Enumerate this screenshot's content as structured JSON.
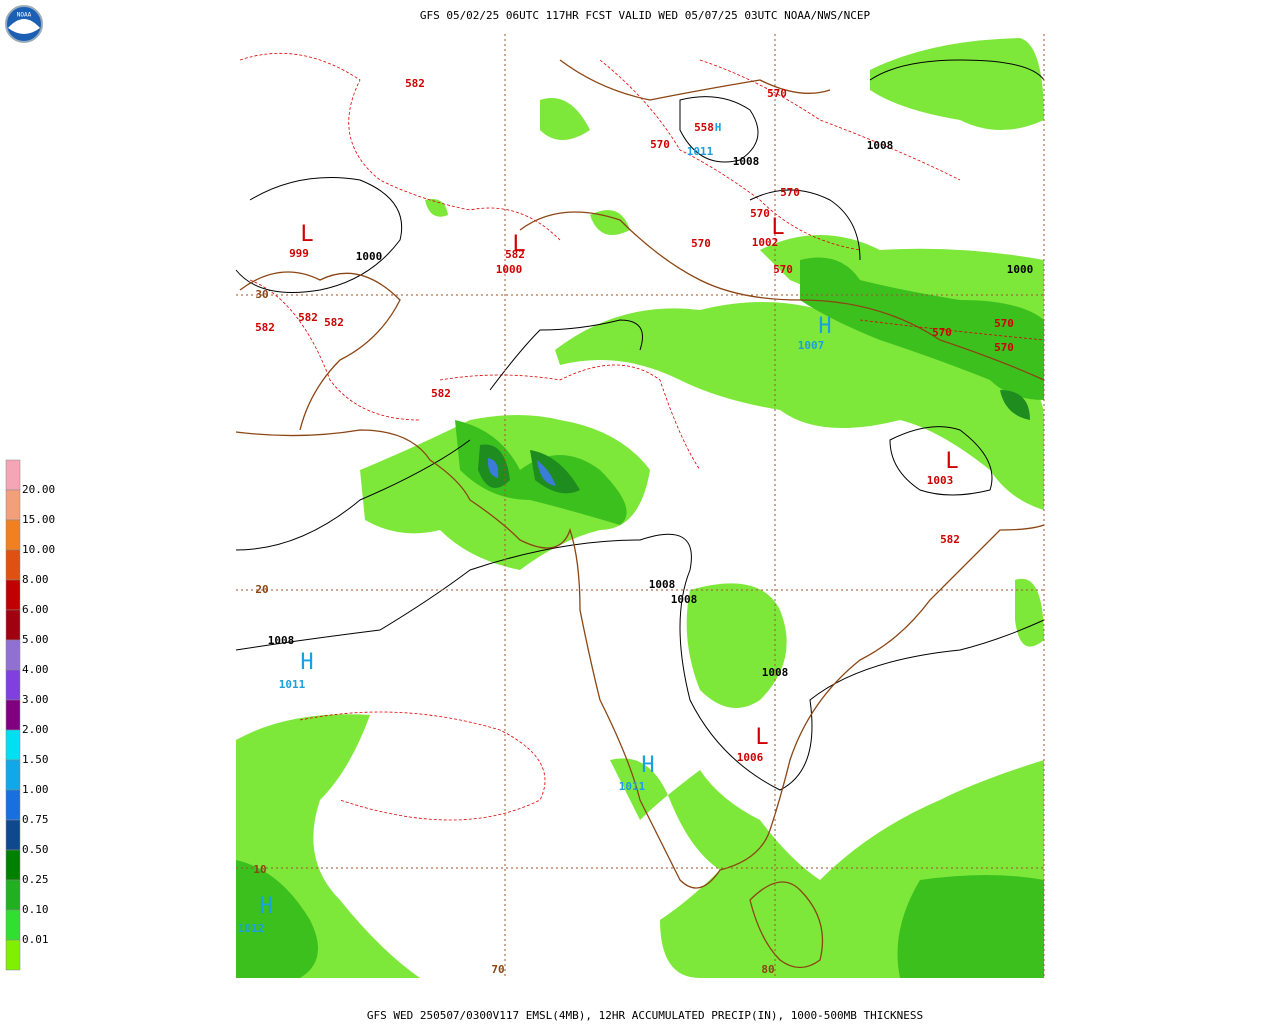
{
  "header": {
    "title": "GFS 05/02/25 06UTC 117HR FCST VALID WED 05/07/25 03UTC NOAA/NWS/NCEP"
  },
  "footer": {
    "caption": "GFS WED 250507/0300V117 EMSL(4MB), 12HR ACCUMULATED PRECIP(IN), 1000-500MB THICKNESS"
  },
  "legend": {
    "labels": [
      "20.00",
      "15.00",
      "10.00",
      "8.00",
      "6.00",
      "5.00",
      "4.00",
      "3.00",
      "2.00",
      "1.50",
      "1.00",
      "0.75",
      "0.50",
      "0.25",
      "0.10",
      "0.01"
    ]
  },
  "map": {
    "labels": [
      "582",
      "570",
      "558",
      "H",
      "1011",
      "570",
      "1008",
      "1008",
      "570",
      "570",
      "L",
      "1002",
      "570",
      "570",
      "1000",
      "L",
      "999",
      "1000",
      "L",
      "582",
      "1000",
      "30",
      "582",
      "582",
      "582",
      "H",
      "1007",
      "570",
      "570",
      "570",
      "582",
      "L",
      "1003",
      "582",
      "20",
      "1008",
      "1008",
      "1008",
      "H",
      "1011",
      "1008",
      "L",
      "1006",
      "H",
      "1011",
      "10",
      "H",
      "1012",
      "70",
      "80"
    ]
  }
}
